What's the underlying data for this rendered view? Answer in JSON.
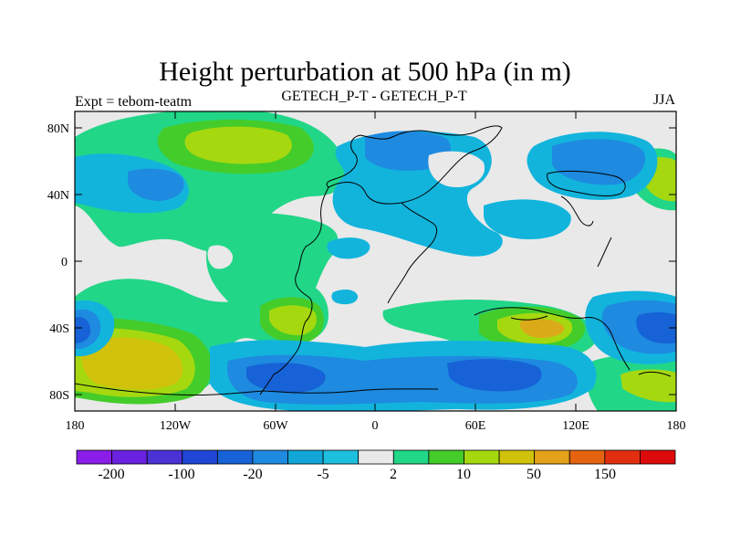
{
  "title": "Height perturbation at 500 hPa (in m)",
  "left_subtitle": "Expt = tebom-teatm",
  "center_subtitle": "GETECH_P-T - GETECH_P-T",
  "right_subtitle": "JJA",
  "lat_ticks": [
    "80N",
    "40N",
    "0",
    "40S",
    "80S"
  ],
  "lon_ticks": [
    "180",
    "120W",
    "60W",
    "0",
    "60E",
    "120E",
    "180"
  ],
  "colorbar": {
    "colors": [
      "#8a1ee8",
      "#6a22e0",
      "#4a32d6",
      "#2046d8",
      "#1662d6",
      "#1e8ae0",
      "#12a6d8",
      "#1ebede",
      "#e9e9e9",
      "#22d688",
      "#44cc2a",
      "#a6d810",
      "#d0c20a",
      "#e4a21a",
      "#e46410",
      "#e22e10",
      "#dc0a0a"
    ],
    "labels": [
      "-200",
      "-100",
      "-20",
      "-5",
      "2",
      "10",
      "50",
      "150"
    ]
  },
  "palette": {
    "blue_dark": "#1662d6",
    "blue": "#1e8ae0",
    "cyan": "#12b4dc",
    "neutral": "#e9e9e9",
    "green": "#22d688",
    "green_mid": "#44cc2a",
    "yellow_green": "#a6d810",
    "yellow": "#d0c20a",
    "orange": "#e4a21a"
  }
}
